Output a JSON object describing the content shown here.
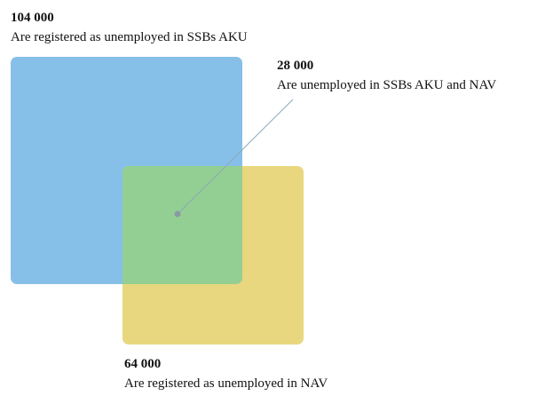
{
  "sets": [
    {
      "value": "104 000",
      "label": "Are registered as unemployed in SSBs AKU"
    },
    {
      "value": "28 000",
      "label": "Are unemployed in SSBs AKU and NAV"
    },
    {
      "value": "64 000",
      "label": "Are registered as unemployed in NAV"
    }
  ]
}
